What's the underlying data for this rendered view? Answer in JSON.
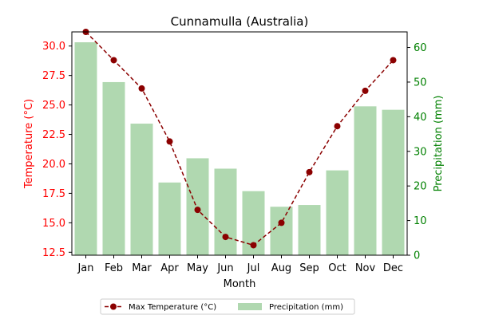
{
  "colors": {
    "temperature": "#8b0000",
    "temperature_axis": "#ff0000",
    "precipitation_bar": "#b0d8b0",
    "precipitation_axis": "#008000",
    "axis": "#000000"
  },
  "chart_data": {
    "type": "bar",
    "title": "Cunnamulla (Australia)",
    "xlabel": "Month",
    "categories": [
      "Jan",
      "Feb",
      "Mar",
      "Apr",
      "May",
      "Jun",
      "Jul",
      "Aug",
      "Sep",
      "Oct",
      "Nov",
      "Dec"
    ],
    "y_left": {
      "label": "Temperature (°C)",
      "ylim": [
        12.25,
        31.2
      ],
      "ticks": [
        "12.5",
        "15.0",
        "17.5",
        "20.0",
        "22.5",
        "25.0",
        "27.5",
        "30.0"
      ]
    },
    "y_right": {
      "label": "Precipitation (mm)",
      "ylim": [
        0,
        64.5
      ],
      "ticks": [
        "0",
        "10",
        "20",
        "30",
        "40",
        "50",
        "60"
      ]
    },
    "series": [
      {
        "name": "Max Temperature (°C)",
        "type": "line",
        "axis": "left",
        "style": "dashed-with-circle-markers",
        "values": [
          31.2,
          28.8,
          26.4,
          21.9,
          16.1,
          13.8,
          13.1,
          15.0,
          19.3,
          23.2,
          26.2,
          28.8
        ]
      },
      {
        "name": "Precipitation (mm)",
        "type": "bar",
        "axis": "right",
        "values": [
          61.5,
          50.0,
          38.0,
          21.0,
          28.0,
          25.0,
          18.5,
          14.0,
          14.5,
          24.5,
          43.0,
          42.0
        ]
      }
    ],
    "legend": {
      "placement": "bottom-center",
      "columns": 2
    },
    "grid": false
  }
}
